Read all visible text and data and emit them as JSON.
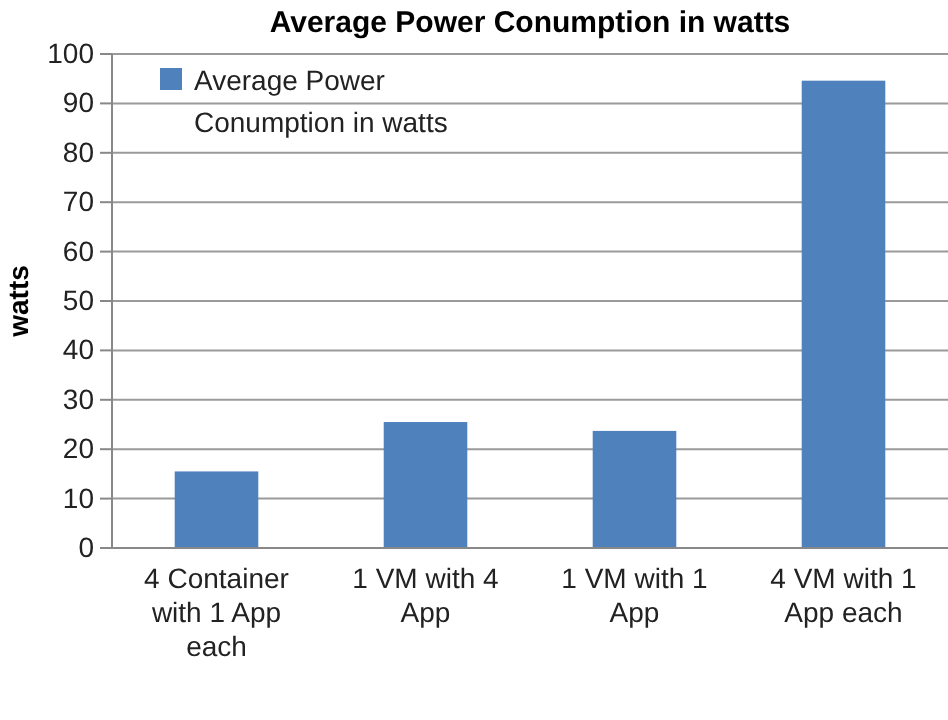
{
  "chart_data": {
    "type": "bar",
    "title": "Average Power Conumption in watts",
    "ylabel": "watts",
    "categories": [
      "4 Container with 1 App each",
      "1 VM with 4 App",
      "1 VM with 1 App",
      "4 VM with 1 App each"
    ],
    "series": [
      {
        "name": "Average Power Conumption in watts",
        "color": "#4f81bd",
        "values": [
          15.5,
          25.5,
          23.7,
          94.6
        ]
      }
    ],
    "ylim": [
      0,
      100
    ],
    "yticks": [
      0,
      10,
      20,
      30,
      40,
      50,
      60,
      70,
      80,
      90,
      100
    ],
    "grid": "y",
    "legend": "top left"
  }
}
